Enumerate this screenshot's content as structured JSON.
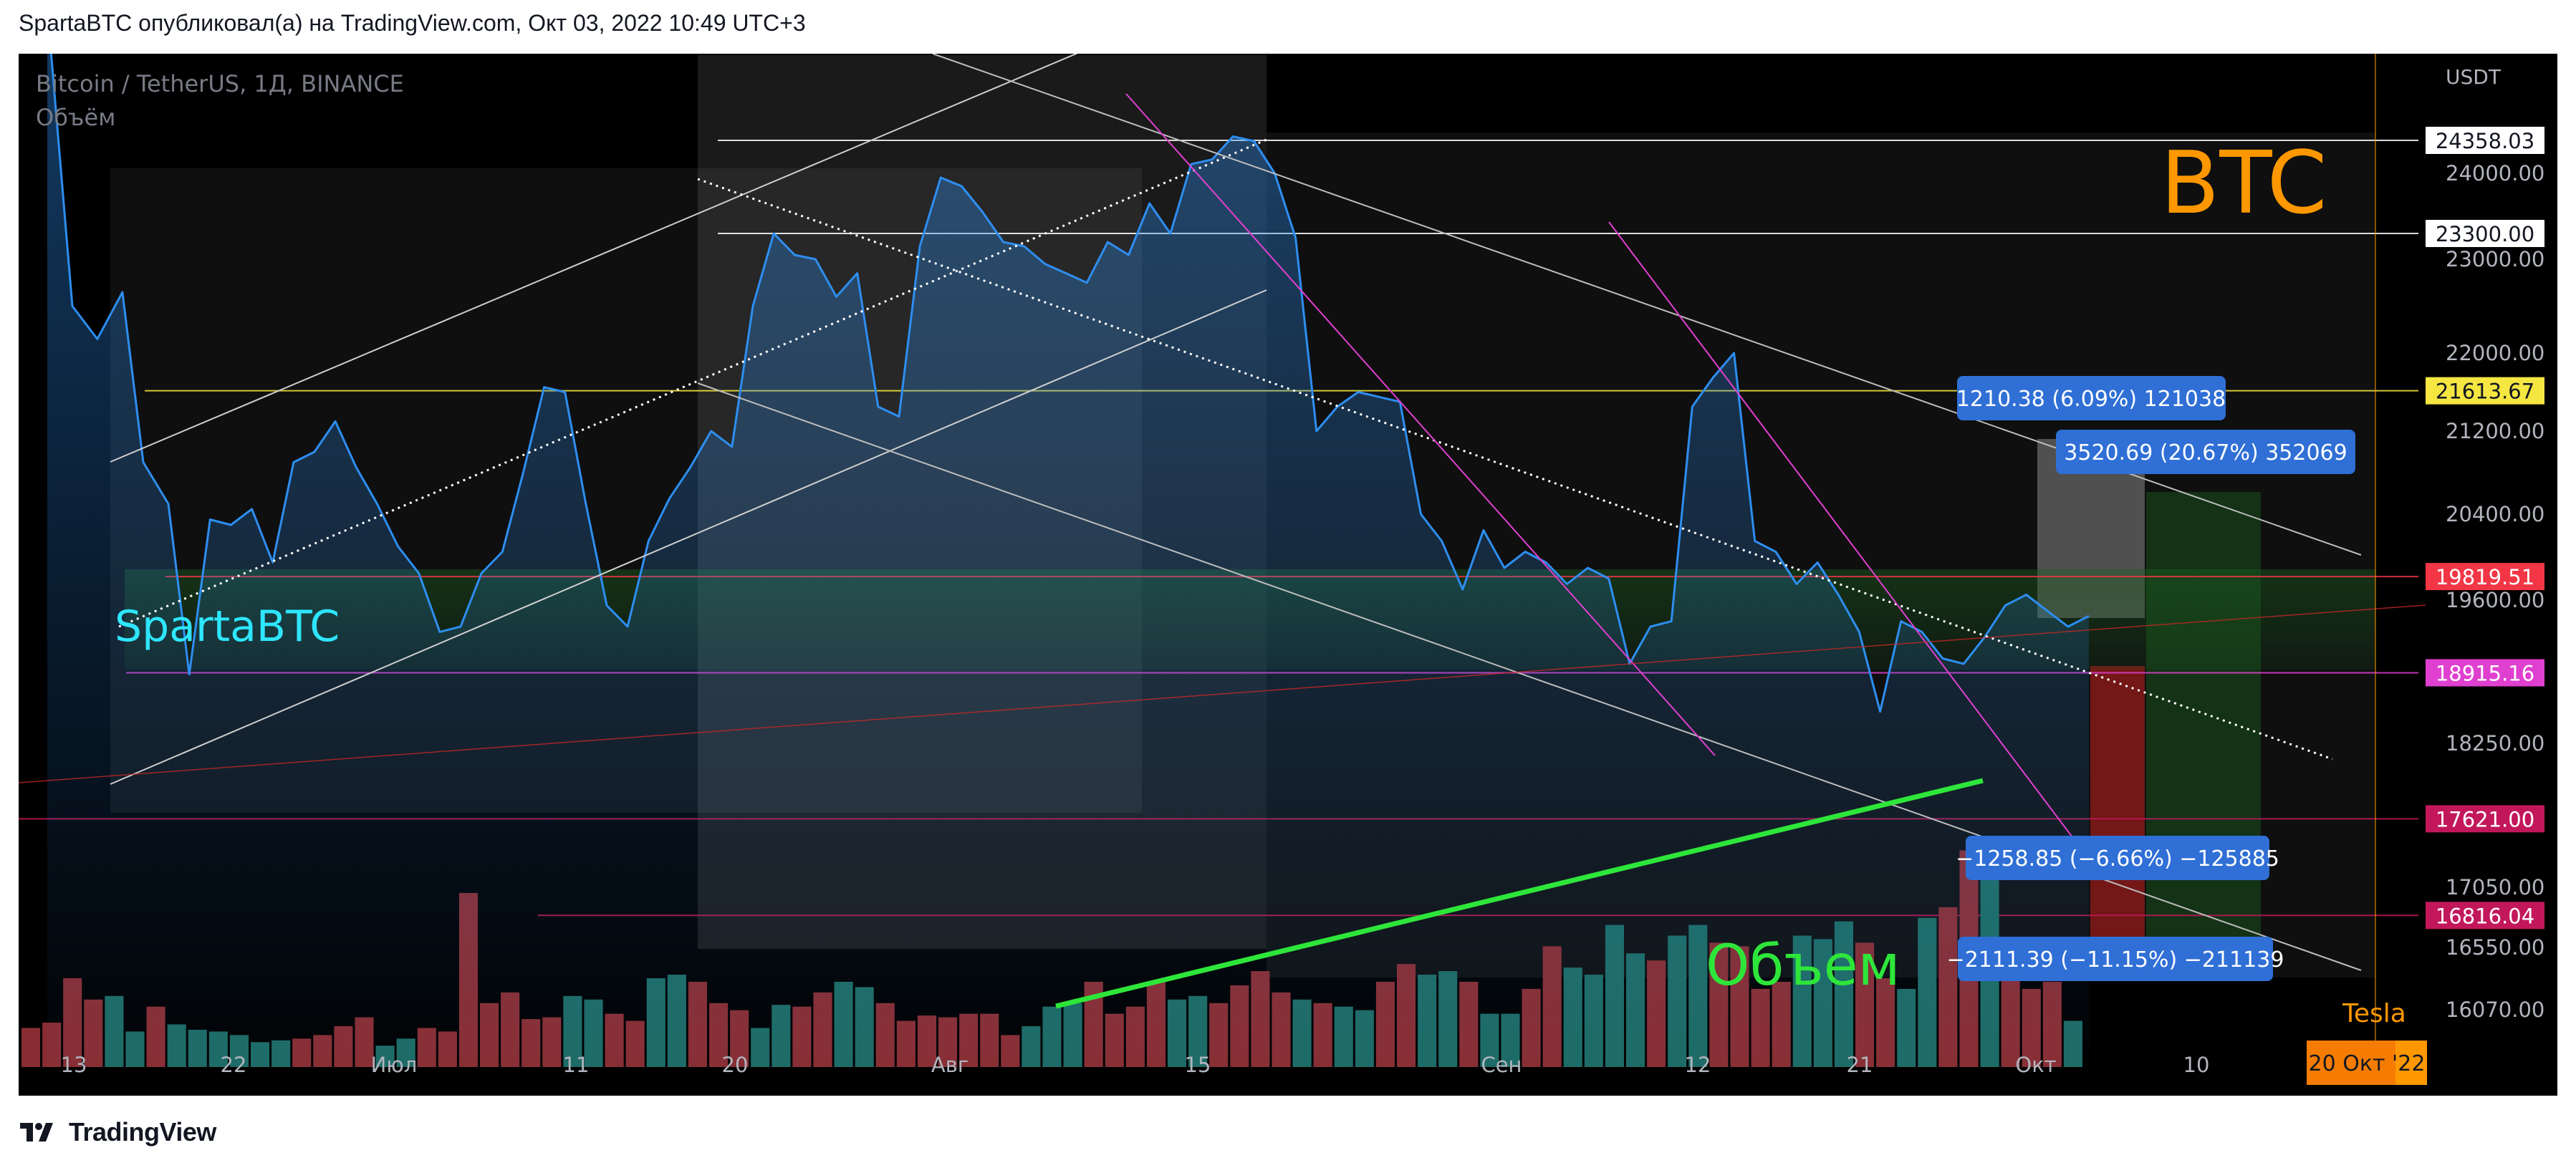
{
  "header": {
    "publish_line": "SpartaBTC опубликовал(а) на TradingView.com, Окт 03, 2022 10:49 UTC+3"
  },
  "footer": {
    "brand": "TradingView"
  },
  "legend": {
    "symbol": "Bitcoin / TetherUS, 1Д, BINANCE",
    "volume": "Объём"
  },
  "annotations": {
    "btc": "BTC",
    "author": "SpartaBTC",
    "volume_note": "Объем",
    "tesla": "Tesla",
    "date_badge": "20 Окт '22",
    "measure_1": "1210.38 (6.09%) 121038",
    "measure_2": "3520.69 (20.67%) 352069",
    "measure_3": "−1258.85 (−6.66%) −125885",
    "measure_4": "−2111.39 (−11.15%) −211139"
  },
  "colors": {
    "price_line": "#2e8ef0",
    "volume_up": "#1e6b64",
    "volume_down": "#8a2d32",
    "yellow_level": "#f5e642",
    "red_level": "#f23645",
    "magenta_level": "#e040d0",
    "crimson_level": "#c2185b",
    "green_trend": "#2ee63a",
    "btc_label": "#ff9800",
    "author_label": "#2ee6ff",
    "measure_box": "#2f6fd6"
  },
  "chart_data": {
    "type": "line",
    "symbol": "BTCUSDT",
    "quote": "USDT",
    "x_labels": [
      "13",
      "22",
      "Июл",
      "11",
      "20",
      "Авг",
      "15",
      "Сен",
      "12",
      "21",
      "Окт",
      "10"
    ],
    "y_ticks": [
      24000,
      23000,
      22000,
      21200,
      20400,
      19600,
      18250,
      17050,
      16550,
      16070
    ],
    "price_levels": [
      {
        "value": 24358.03,
        "label": "24358.03",
        "color": "#ffffff"
      },
      {
        "value": 23300.0,
        "label": "23300.00",
        "color": "#ffffff"
      },
      {
        "value": 21613.67,
        "label": "21613.67",
        "color": "#f5e642"
      },
      {
        "value": 19819.51,
        "label": "19819.51",
        "color": "#f23645"
      },
      {
        "value": 18915.16,
        "label": "18915.16",
        "color": "#e040d0"
      },
      {
        "value": 17621.0,
        "label": "17621.00",
        "color": "#c2185b"
      },
      {
        "value": 16816.04,
        "label": "16816.04",
        "color": "#c2185b"
      }
    ],
    "price_series": [
      [
        1,
        25800
      ],
      [
        1.6,
        22500
      ],
      [
        2.2,
        22150
      ],
      [
        2.8,
        22650
      ],
      [
        3.3,
        20900
      ],
      [
        3.9,
        20500
      ],
      [
        4.4,
        18900
      ],
      [
        4.9,
        20350
      ],
      [
        5.4,
        20300
      ],
      [
        5.9,
        20450
      ],
      [
        6.4,
        19950
      ],
      [
        6.9,
        20900
      ],
      [
        7.4,
        21000
      ],
      [
        7.9,
        21300
      ],
      [
        8.4,
        20850
      ],
      [
        8.9,
        20500
      ],
      [
        9.4,
        20100
      ],
      [
        9.9,
        19850
      ],
      [
        10.4,
        19300
      ],
      [
        10.9,
        19350
      ],
      [
        11.4,
        19850
      ],
      [
        11.9,
        20050
      ],
      [
        12.4,
        20800
      ],
      [
        12.9,
        21650
      ],
      [
        13.4,
        21600
      ],
      [
        13.9,
        20500
      ],
      [
        14.4,
        19550
      ],
      [
        14.9,
        19350
      ],
      [
        15.4,
        20150
      ],
      [
        15.9,
        20550
      ],
      [
        16.4,
        20850
      ],
      [
        16.9,
        21200
      ],
      [
        17.4,
        21050
      ],
      [
        17.9,
        22500
      ],
      [
        18.4,
        23300
      ],
      [
        18.9,
        23050
      ],
      [
        19.4,
        23000
      ],
      [
        19.9,
        22600
      ],
      [
        20.4,
        22850
      ],
      [
        20.9,
        21450
      ],
      [
        21.4,
        21350
      ],
      [
        21.9,
        23150
      ],
      [
        22.4,
        23950
      ],
      [
        22.9,
        23850
      ],
      [
        23.4,
        23550
      ],
      [
        23.9,
        23200
      ],
      [
        24.4,
        23150
      ],
      [
        24.9,
        22950
      ],
      [
        25.4,
        22850
      ],
      [
        25.9,
        22750
      ],
      [
        26.4,
        23200
      ],
      [
        26.9,
        23050
      ],
      [
        27.4,
        23650
      ],
      [
        27.9,
        23300
      ],
      [
        28.4,
        24100
      ],
      [
        28.9,
        24150
      ],
      [
        29.4,
        24400
      ],
      [
        29.9,
        24350
      ],
      [
        30.4,
        24000
      ],
      [
        30.9,
        23250
      ],
      [
        31.4,
        21200
      ],
      [
        31.9,
        21450
      ],
      [
        32.4,
        21600
      ],
      [
        32.9,
        21550
      ],
      [
        33.4,
        21500
      ],
      [
        33.9,
        20400
      ],
      [
        34.4,
        20150
      ],
      [
        34.9,
        19700
      ],
      [
        35.4,
        20250
      ],
      [
        35.9,
        19900
      ],
      [
        36.4,
        20050
      ],
      [
        36.9,
        19950
      ],
      [
        37.4,
        19750
      ],
      [
        37.9,
        19900
      ],
      [
        38.4,
        19800
      ],
      [
        38.9,
        19000
      ],
      [
        39.4,
        19350
      ],
      [
        39.9,
        19400
      ],
      [
        40.4,
        21450
      ],
      [
        40.9,
        21750
      ],
      [
        41.4,
        22000
      ],
      [
        41.9,
        20150
      ],
      [
        42.4,
        20050
      ],
      [
        42.9,
        19750
      ],
      [
        43.4,
        19950
      ],
      [
        43.9,
        19650
      ],
      [
        44.4,
        19300
      ],
      [
        44.9,
        18550
      ],
      [
        45.4,
        19400
      ],
      [
        45.9,
        19300
      ],
      [
        46.4,
        19050
      ],
      [
        46.9,
        19000
      ],
      [
        47.4,
        19250
      ],
      [
        47.9,
        19550
      ],
      [
        48.4,
        19650
      ],
      [
        48.9,
        19500
      ],
      [
        49.4,
        19350
      ],
      [
        49.9,
        19450
      ]
    ],
    "volume_series": [
      {
        "v": 22,
        "up": false
      },
      {
        "v": 25,
        "up": false
      },
      {
        "v": 50,
        "up": false
      },
      {
        "v": 38,
        "up": false
      },
      {
        "v": 40,
        "up": true
      },
      {
        "v": 20,
        "up": true
      },
      {
        "v": 34,
        "up": false
      },
      {
        "v": 24,
        "up": true
      },
      {
        "v": 21,
        "up": true
      },
      {
        "v": 20,
        "up": true
      },
      {
        "v": 18,
        "up": true
      },
      {
        "v": 14,
        "up": true
      },
      {
        "v": 15,
        "up": true
      },
      {
        "v": 16,
        "up": false
      },
      {
        "v": 18,
        "up": false
      },
      {
        "v": 23,
        "up": false
      },
      {
        "v": 28,
        "up": false
      },
      {
        "v": 12,
        "up": true
      },
      {
        "v": 16,
        "up": true
      },
      {
        "v": 22,
        "up": false
      },
      {
        "v": 20,
        "up": false
      },
      {
        "v": 98,
        "up": false
      },
      {
        "v": 36,
        "up": false
      },
      {
        "v": 42,
        "up": false
      },
      {
        "v": 27,
        "up": false
      },
      {
        "v": 28,
        "up": false
      },
      {
        "v": 40,
        "up": true
      },
      {
        "v": 38,
        "up": true
      },
      {
        "v": 30,
        "up": false
      },
      {
        "v": 26,
        "up": false
      },
      {
        "v": 50,
        "up": true
      },
      {
        "v": 52,
        "up": true
      },
      {
        "v": 48,
        "up": false
      },
      {
        "v": 36,
        "up": false
      },
      {
        "v": 32,
        "up": false
      },
      {
        "v": 22,
        "up": true
      },
      {
        "v": 35,
        "up": true
      },
      {
        "v": 34,
        "up": false
      },
      {
        "v": 42,
        "up": false
      },
      {
        "v": 48,
        "up": true
      },
      {
        "v": 45,
        "up": true
      },
      {
        "v": 36,
        "up": false
      },
      {
        "v": 26,
        "up": false
      },
      {
        "v": 29,
        "up": false
      },
      {
        "v": 28,
        "up": false
      },
      {
        "v": 30,
        "up": false
      },
      {
        "v": 30,
        "up": false
      },
      {
        "v": 18,
        "up": false
      },
      {
        "v": 23,
        "up": true
      },
      {
        "v": 34,
        "up": true
      },
      {
        "v": 36,
        "up": true
      },
      {
        "v": 48,
        "up": false
      },
      {
        "v": 30,
        "up": false
      },
      {
        "v": 34,
        "up": false
      },
      {
        "v": 48,
        "up": false
      },
      {
        "v": 38,
        "up": true
      },
      {
        "v": 40,
        "up": true
      },
      {
        "v": 36,
        "up": false
      },
      {
        "v": 46,
        "up": false
      },
      {
        "v": 54,
        "up": false
      },
      {
        "v": 42,
        "up": false
      },
      {
        "v": 38,
        "up": true
      },
      {
        "v": 36,
        "up": false
      },
      {
        "v": 34,
        "up": true
      },
      {
        "v": 32,
        "up": true
      },
      {
        "v": 48,
        "up": false
      },
      {
        "v": 58,
        "up": false
      },
      {
        "v": 52,
        "up": true
      },
      {
        "v": 54,
        "up": true
      },
      {
        "v": 48,
        "up": false
      },
      {
        "v": 30,
        "up": true
      },
      {
        "v": 30,
        "up": true
      },
      {
        "v": 44,
        "up": false
      },
      {
        "v": 68,
        "up": false
      },
      {
        "v": 56,
        "up": true
      },
      {
        "v": 52,
        "up": true
      },
      {
        "v": 80,
        "up": true
      },
      {
        "v": 64,
        "up": true
      },
      {
        "v": 60,
        "up": false
      },
      {
        "v": 74,
        "up": true
      },
      {
        "v": 80,
        "up": true
      },
      {
        "v": 70,
        "up": false
      },
      {
        "v": 68,
        "up": false
      },
      {
        "v": 44,
        "up": false
      },
      {
        "v": 48,
        "up": false
      },
      {
        "v": 74,
        "up": true
      },
      {
        "v": 72,
        "up": true
      },
      {
        "v": 82,
        "up": true
      },
      {
        "v": 70,
        "up": false
      },
      {
        "v": 50,
        "up": false
      },
      {
        "v": 44,
        "up": true
      },
      {
        "v": 84,
        "up": true
      },
      {
        "v": 90,
        "up": false
      },
      {
        "v": 122,
        "up": false
      },
      {
        "v": 106,
        "up": true
      },
      {
        "v": 58,
        "up": false
      },
      {
        "v": 44,
        "up": false
      },
      {
        "v": 48,
        "up": false
      },
      {
        "v": 26,
        "up": true
      }
    ],
    "xlabel": "",
    "ylabel": ""
  }
}
